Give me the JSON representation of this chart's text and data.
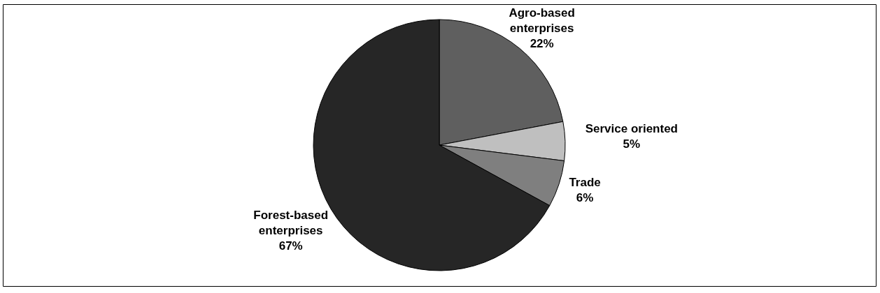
{
  "chart_data": {
    "type": "pie",
    "categories": [
      "Agro-based enterprises",
      "Service oriented",
      "Trade",
      "Forest-based enterprises"
    ],
    "values": [
      22,
      5,
      6,
      67
    ],
    "colors": [
      "#5f5f5f",
      "#bfbfbf",
      "#7f7f7f",
      "#262626"
    ],
    "value_labels": [
      "22%",
      "5%",
      "6%",
      "67%"
    ]
  }
}
